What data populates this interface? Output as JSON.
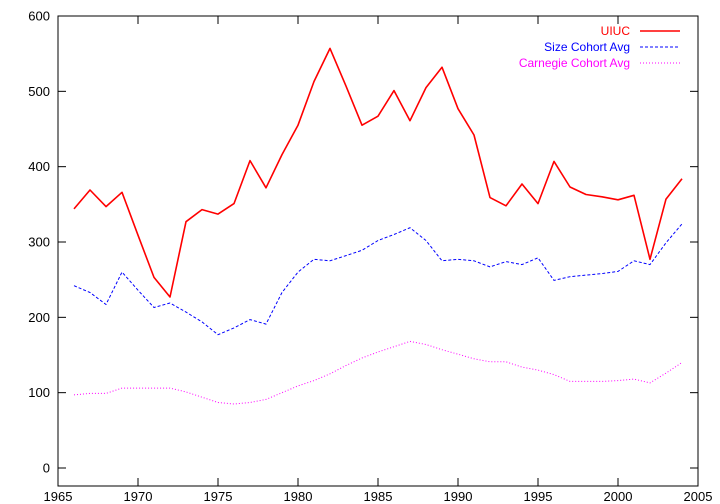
{
  "chart_data": {
    "type": "line",
    "title": "",
    "xlabel": "",
    "ylabel": "",
    "xlim": [
      1965,
      2005
    ],
    "ylim": [
      0,
      600
    ],
    "xticks": [
      1965,
      1970,
      1975,
      1980,
      1985,
      1990,
      1995,
      2000,
      2005
    ],
    "yticks": [
      0,
      100,
      200,
      300,
      400,
      500,
      600
    ],
    "grid": false,
    "legend_position": "top-right",
    "x": [
      1966,
      1967,
      1968,
      1969,
      1970,
      1971,
      1972,
      1973,
      1974,
      1975,
      1976,
      1977,
      1978,
      1979,
      1980,
      1981,
      1982,
      1983,
      1984,
      1985,
      1986,
      1987,
      1988,
      1989,
      1990,
      1991,
      1992,
      1993,
      1994,
      1995,
      1996,
      1997,
      1998,
      1999,
      2000,
      2001,
      2002,
      2003,
      2004
    ],
    "series": [
      {
        "name": "UIUC",
        "color": "#ff0000",
        "style": "solid",
        "values": [
          344,
          369,
          347,
          366,
          309,
          253,
          227,
          327,
          343,
          337,
          351,
          408,
          372,
          416,
          455,
          513,
          557,
          507,
          455,
          467,
          501,
          461,
          505,
          532,
          477,
          442,
          359,
          348,
          377,
          351,
          407,
          373,
          363,
          360,
          356,
          362,
          277,
          357,
          384
        ]
      },
      {
        "name": "Size Cohort Avg",
        "color": "#0000ff",
        "style": "dashed",
        "values": [
          242,
          233,
          217,
          260,
          236,
          213,
          219,
          207,
          194,
          177,
          186,
          197,
          191,
          233,
          260,
          277,
          275,
          282,
          289,
          302,
          310,
          319,
          302,
          275,
          277,
          275,
          267,
          274,
          270,
          279,
          249,
          254,
          256,
          258,
          261,
          275,
          270,
          299,
          324
        ]
      },
      {
        "name": "Carnegie Cohort Avg",
        "color": "#ff00ff",
        "style": "dotted",
        "values": [
          97,
          99,
          99,
          106,
          106,
          106,
          106,
          101,
          94,
          87,
          85,
          87,
          91,
          100,
          109,
          116,
          125,
          136,
          146,
          154,
          161,
          168,
          164,
          157,
          151,
          145,
          141,
          141,
          134,
          130,
          124,
          115,
          115,
          115,
          116,
          118,
          113,
          126,
          140
        ]
      }
    ]
  }
}
